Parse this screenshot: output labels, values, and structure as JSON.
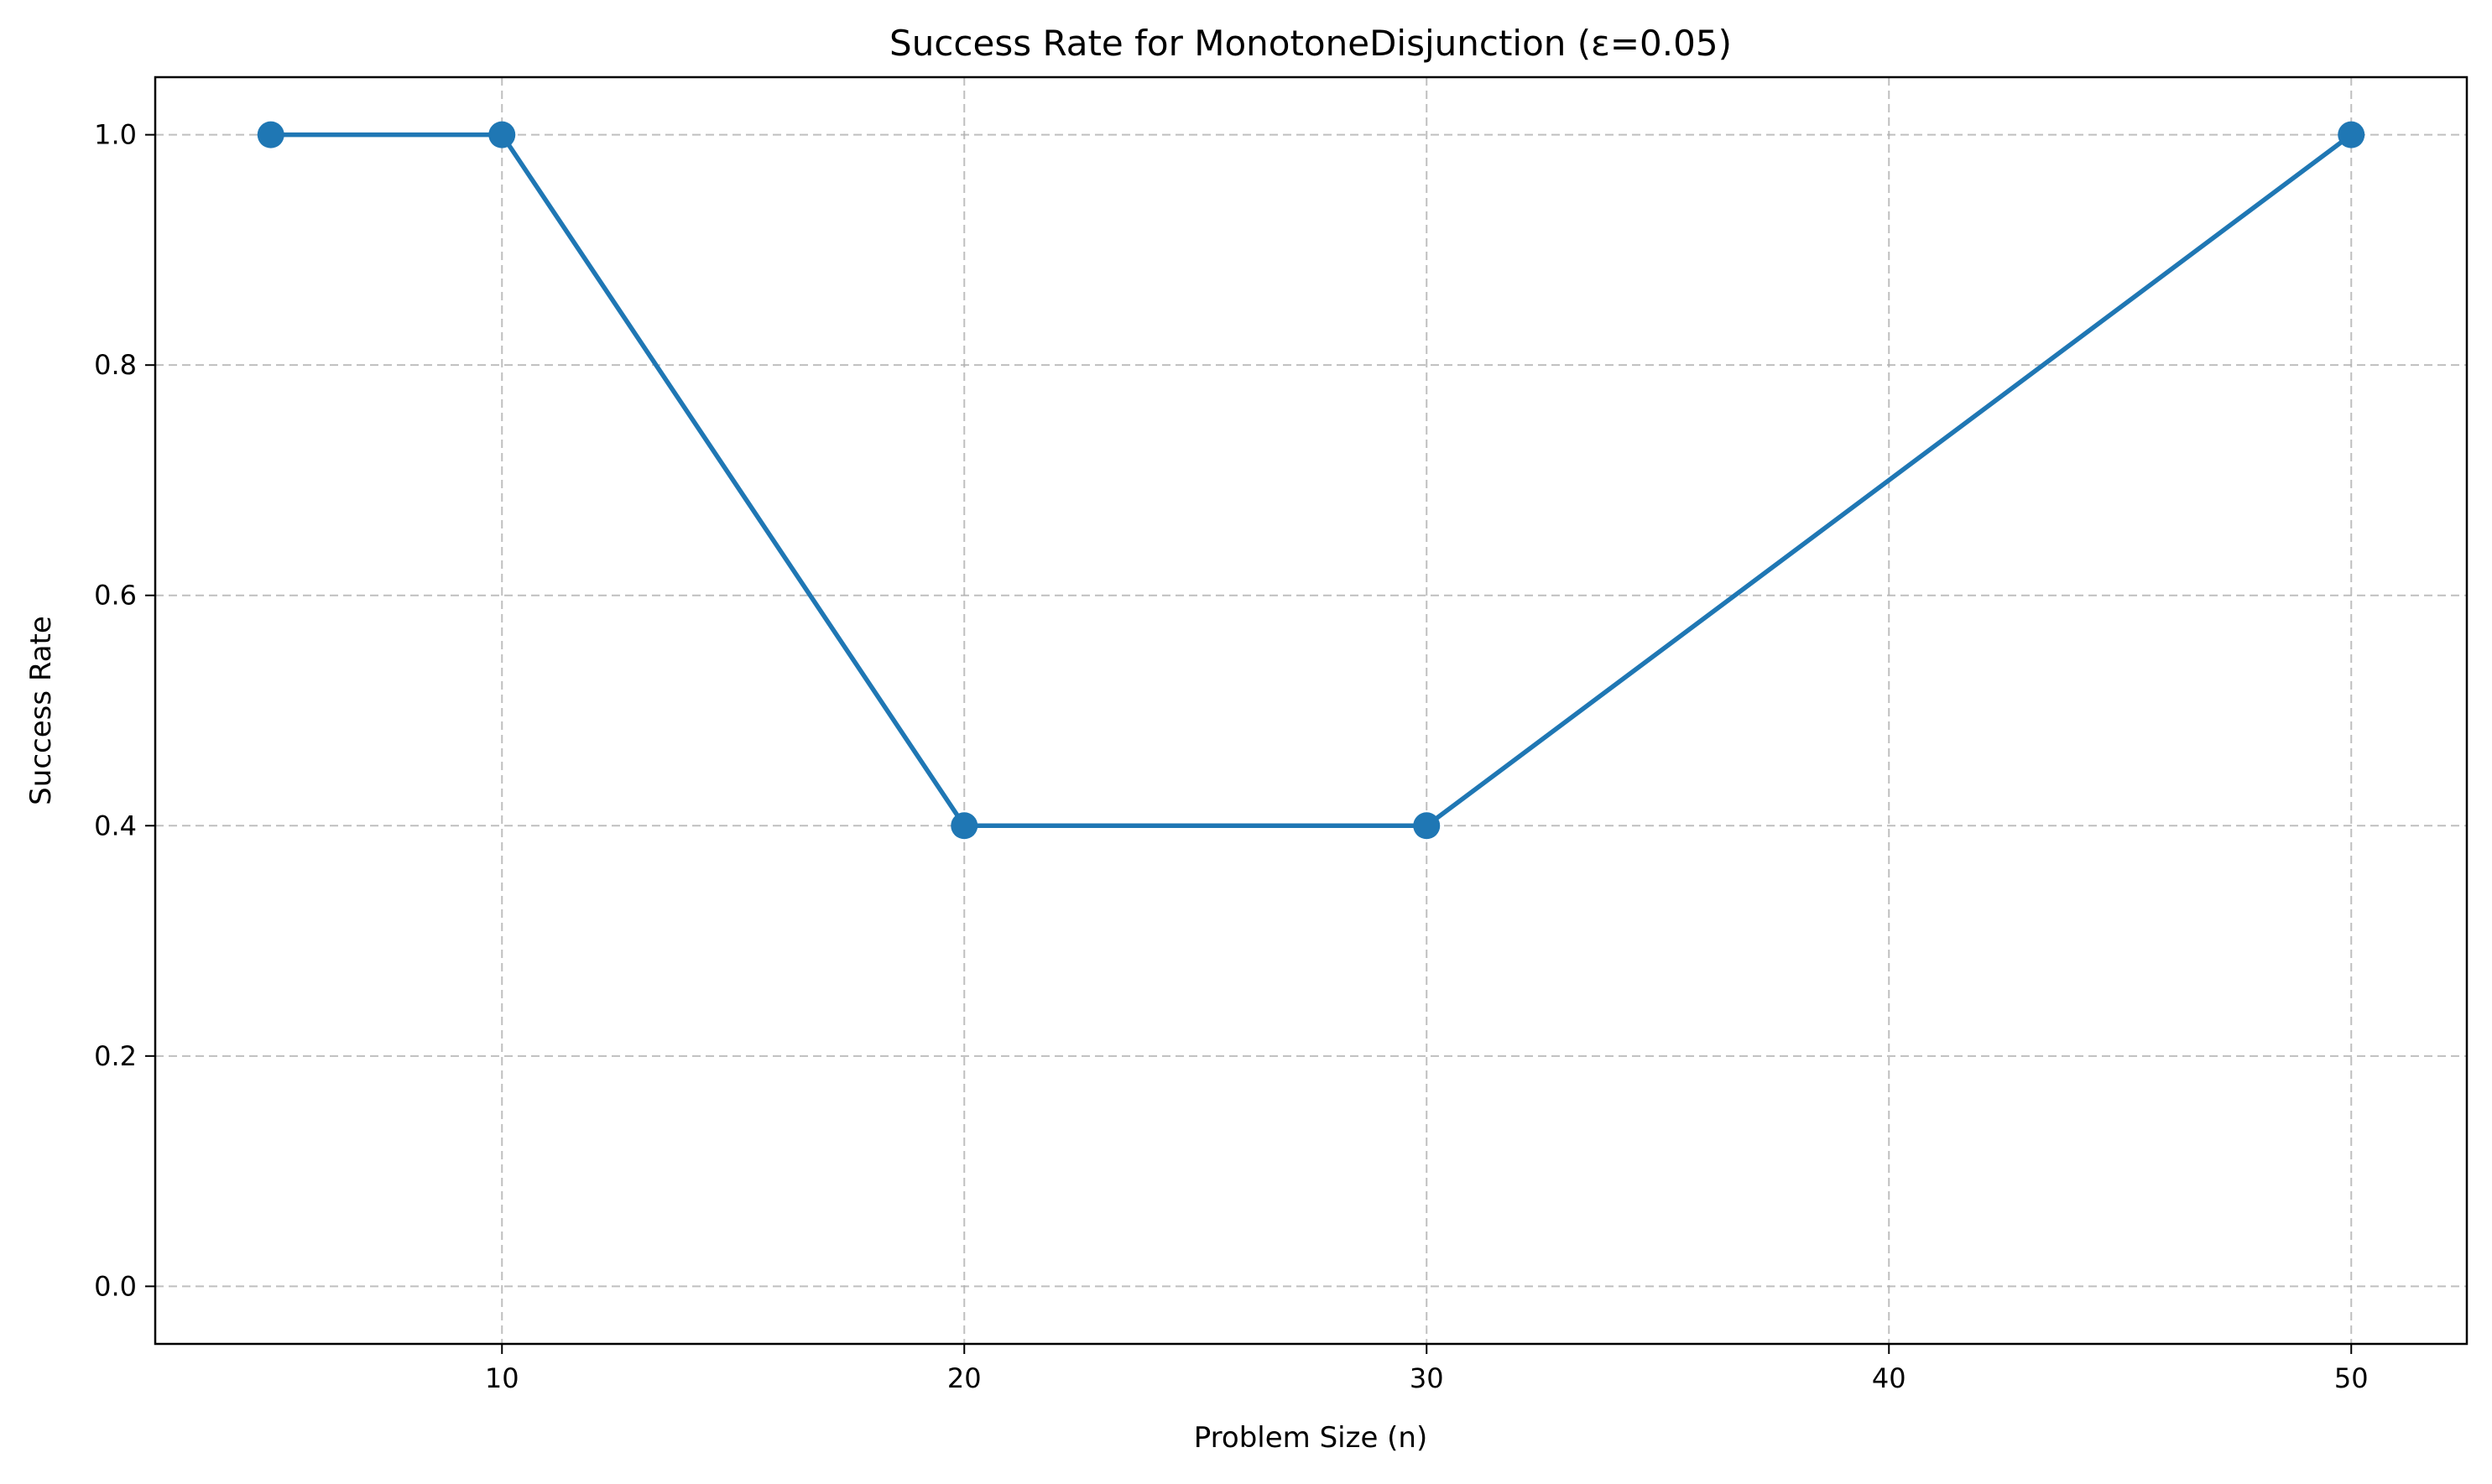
{
  "chart_data": {
    "type": "line",
    "title": "Success Rate for MonotoneDisjunction (ε=0.05)",
    "xlabel": "Problem Size (n)",
    "ylabel": "Success Rate",
    "xlim": [
      2.5,
      52.5
    ],
    "ylim": [
      -0.05,
      1.05
    ],
    "xticks": [
      10,
      20,
      30,
      40,
      50
    ],
    "xtick_labels": [
      "10",
      "20",
      "30",
      "40",
      "50"
    ],
    "yticks": [
      0.0,
      0.2,
      0.4,
      0.6,
      0.8,
      1.0
    ],
    "ytick_labels": [
      "0.0",
      "0.2",
      "0.4",
      "0.6",
      "0.8",
      "1.0"
    ],
    "grid": true,
    "series": [
      {
        "color": "#1f77b4",
        "marker": "circle",
        "x": [
          5,
          10,
          20,
          30,
          50
        ],
        "y": [
          1.0,
          1.0,
          0.4,
          0.4,
          1.0
        ]
      }
    ]
  }
}
